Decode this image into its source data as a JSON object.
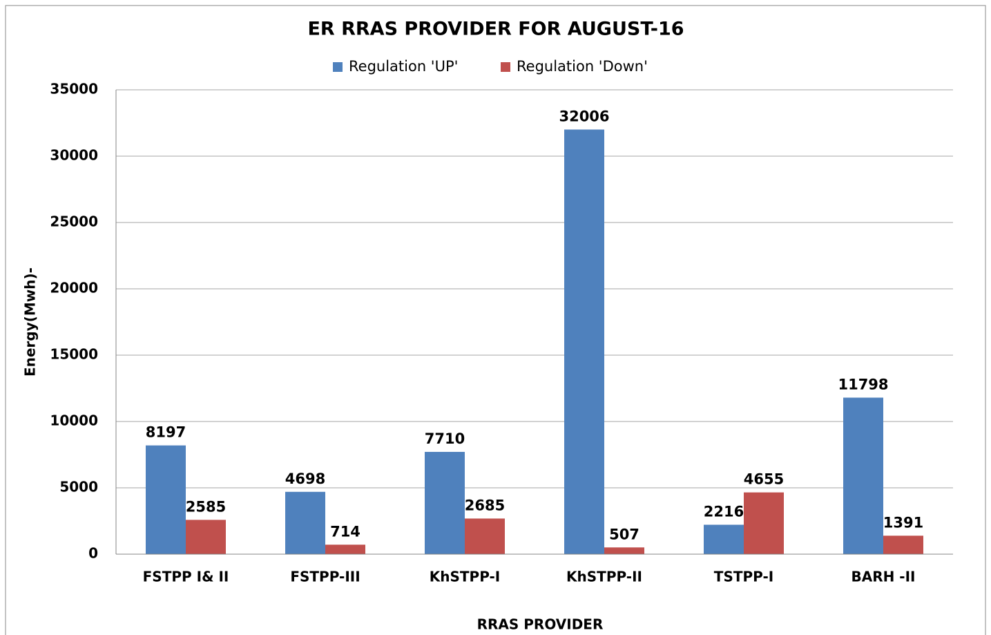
{
  "chart_data": {
    "type": "bar",
    "title": "ER RRAS PROVIDER FOR AUGUST-16",
    "xlabel": "RRAS PROVIDER",
    "ylabel": "Energy(Mwh)-",
    "categories": [
      "FSTPP I& II",
      "FSTPP-III",
      "KhSTPP-I",
      "KhSTPP-II",
      "TSTPP-I",
      "BARH -II"
    ],
    "series": [
      {
        "name": "Regulation 'UP'",
        "color": "#4f81bd",
        "values": [
          8197,
          4698,
          7710,
          32006,
          2216,
          11798
        ]
      },
      {
        "name": "Regulation 'Down'",
        "color": "#c0504d",
        "values": [
          2585,
          714,
          2685,
          507,
          4655,
          1391
        ]
      }
    ],
    "ylim": [
      0,
      35000
    ],
    "yticks": [
      0,
      5000,
      10000,
      15000,
      20000,
      25000,
      30000,
      35000
    ],
    "grid": true,
    "legend": "top"
  }
}
